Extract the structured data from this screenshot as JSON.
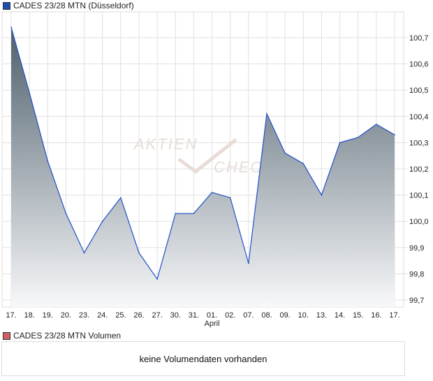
{
  "legend": {
    "price": "CADES 23/28 MTN (Düsseldorf)",
    "volume": "CADES 23/28 MTN Volumen"
  },
  "colors": {
    "price": "#1a4fb0",
    "volume": "#d06060",
    "line": "#2050c8",
    "fill_top": "#4e5f6b",
    "fill_bottom": "#f7f8fa"
  },
  "watermark": "AKTIEN CHECK",
  "volume_message": "keine Volumendaten vorhanden",
  "chart_data": {
    "type": "area",
    "title": "CADES 23/28 MTN (Düsseldorf)",
    "xlabel": "April",
    "ylabel": "",
    "categories": [
      "17.",
      "18.",
      "19.",
      "20.",
      "23.",
      "24.",
      "25.",
      "26.",
      "27.",
      "30.",
      "31.",
      "01.",
      "02.",
      "07.",
      "08.",
      "09.",
      "10.",
      "13.",
      "14.",
      "15.",
      "16.",
      "17."
    ],
    "values": [
      100.74,
      100.49,
      100.23,
      100.03,
      99.88,
      100.0,
      100.09,
      99.88,
      99.78,
      100.03,
      100.03,
      100.11,
      100.09,
      99.84,
      100.41,
      100.26,
      100.22,
      100.1,
      100.3,
      100.32,
      100.37,
      100.33
    ],
    "yticks": [
      "99,7",
      "99,8",
      "99,9",
      "100,0",
      "100,1",
      "100,2",
      "100,3",
      "100,4",
      "100,5",
      "100,6",
      "100,7"
    ],
    "ylim": [
      99.665,
      100.79
    ],
    "grid": true,
    "legend_position": "top-left"
  }
}
